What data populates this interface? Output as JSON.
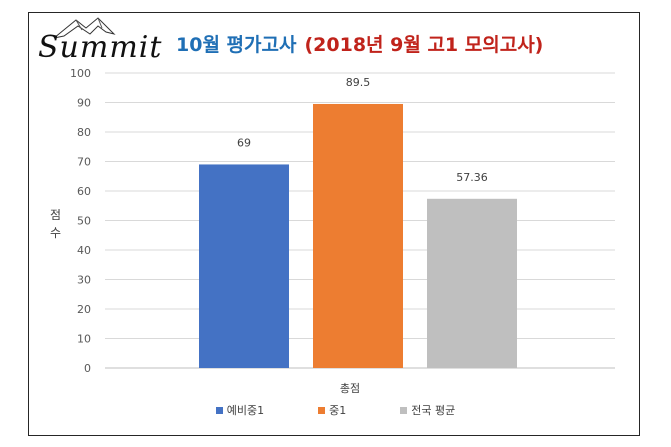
{
  "header": {
    "logo_text": "Summit",
    "title_main": "10월 평가고사",
    "title_sub": "(2018년 9월 고1 모의고사)"
  },
  "colors": {
    "title_main": "#1f6fb5",
    "title_sub": "#c0231b",
    "series": [
      "#4472c4",
      "#ed7d31",
      "#bfbfbf"
    ]
  },
  "chart_data": {
    "type": "bar",
    "title": "10월 평가고사 (2018년 9월 고1 모의고사)",
    "categories": [
      "총점"
    ],
    "series": [
      {
        "name": "예비중1",
        "values": [
          69
        ],
        "label": "69"
      },
      {
        "name": "중1",
        "values": [
          89.5
        ],
        "label": "89.5"
      },
      {
        "name": "전국 평균",
        "values": [
          57.36
        ],
        "label": "57.36"
      }
    ],
    "xlabel": "총점",
    "ylabel": "점수",
    "ylim": [
      0,
      100
    ],
    "yticks": [
      0,
      10,
      20,
      30,
      40,
      50,
      60,
      70,
      80,
      90,
      100
    ],
    "grid": true,
    "legend": "bottom"
  }
}
